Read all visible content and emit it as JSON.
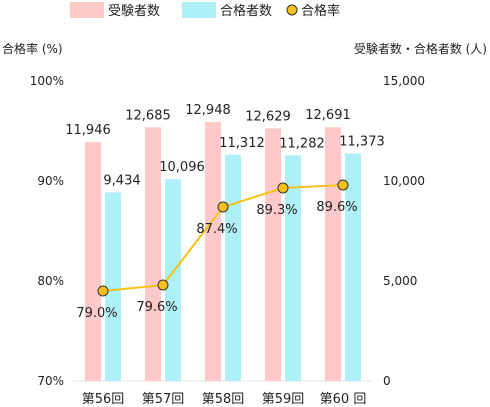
{
  "chart_data": {
    "type": "bar",
    "categories": [
      "第56回",
      "第57回",
      "第58回",
      "第59回",
      "第60 回"
    ],
    "series": [
      {
        "name": "受験者数",
        "kind": "bar",
        "axis": "right",
        "color": "#ffc9c9",
        "values": [
          11946,
          12685,
          12948,
          12629,
          12691
        ],
        "labels": [
          "11,946",
          "12,685",
          "12,948",
          "12,629",
          "12,691"
        ]
      },
      {
        "name": "合格者数",
        "kind": "bar",
        "axis": "right",
        "color": "#aef0f7",
        "values": [
          9434,
          10096,
          11312,
          11282,
          11373
        ],
        "labels": [
          "9,434",
          "10,096",
          "11,312",
          "11,282",
          "11,373"
        ]
      },
      {
        "name": "合格率",
        "kind": "line",
        "axis": "left",
        "color": "#f6c21a",
        "marker_color": "#f8c11a",
        "values": [
          79.0,
          79.6,
          87.4,
          89.3,
          89.6
        ],
        "labels": [
          "79.0%",
          "79.6%",
          "87.4%",
          "89.3%",
          "89.6%"
        ]
      }
    ],
    "ylabel_left": "合格率 (%)",
    "ylabel_right": "受験者数・合格者数 (人)",
    "ylim_left": [
      70,
      100
    ],
    "yticks_left": [
      "70%",
      "80%",
      "90%",
      "100%"
    ],
    "ylim_right": [
      0,
      15000
    ],
    "yticks_right": [
      "0",
      "5,000",
      "10,000",
      "15,000"
    ],
    "grid": false,
    "legend_position": "top-center"
  }
}
